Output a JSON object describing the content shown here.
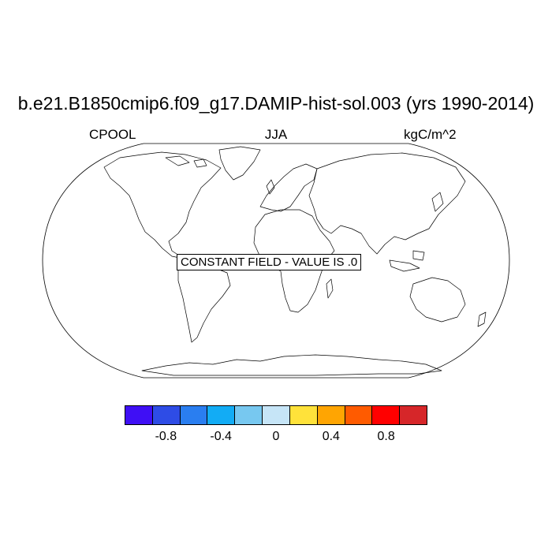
{
  "title": "b.e21.B1850cmip6.f09_g17.DAMIP-hist-sol.003 (yrs 1990-2014)",
  "left_label": "CPOOL",
  "center_label": "JJA",
  "right_label": "kgC/m^2",
  "map": {
    "projection": "Robinson",
    "annotation": "CONSTANT FIELD - VALUE IS .0"
  },
  "colorbar": {
    "colors": [
      "#3f0ff5",
      "#2e4ce6",
      "#2a7ef0",
      "#12acf5",
      "#77c8f0",
      "#c6e5f7",
      "#ffe23a",
      "#ffa502",
      "#ff5b00",
      "#ff0000",
      "#d62629"
    ],
    "tick_labels": [
      "-0.8",
      "-0.4",
      "0",
      "0.4",
      "0.8"
    ],
    "tick_values": [
      -0.8,
      -0.4,
      0,
      0.4,
      0.8
    ],
    "range": [
      -1.1,
      1.1
    ]
  }
}
